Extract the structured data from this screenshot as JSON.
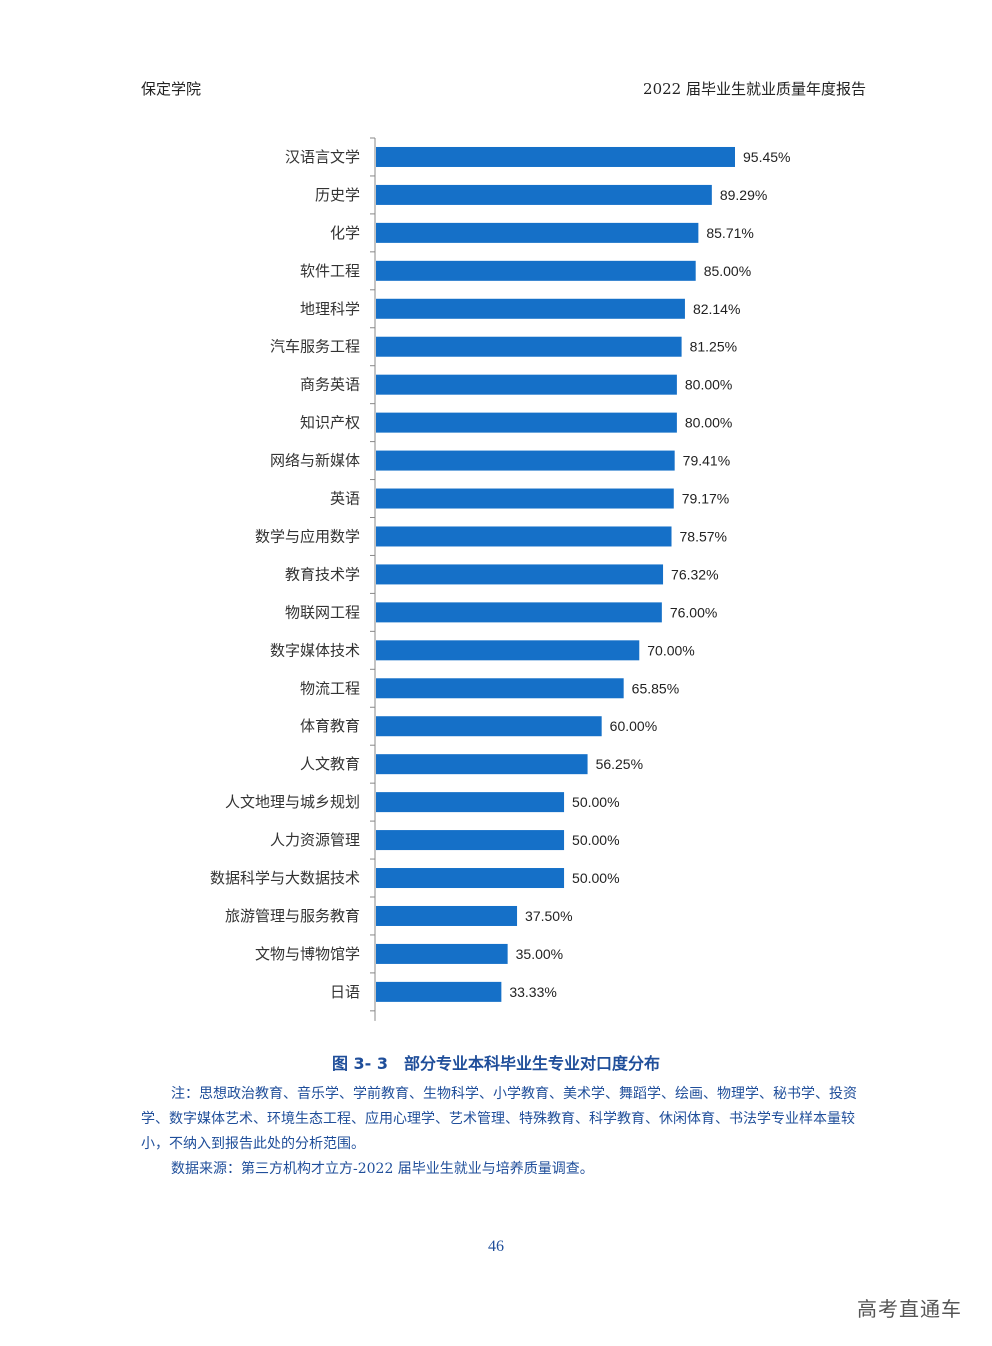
{
  "header": {
    "left": "保定学院",
    "right": "2022 届毕业生就业质量年度报告"
  },
  "caption": "图 3- 3　部分专业本科毕业生专业对口度分布",
  "note": {
    "line1": "注：思想政治教育、音乐学、学前教育、生物科学、小学教育、美术学、舞蹈学、绘画、物理学、秘书学、投资学、数字媒体艺术、环境生态工程、应用心理学、艺术管理、特殊教育、科学教育、休闲体育、书法学专业样本量较小，不纳入到报告此处的分析范围。",
    "line2": "数据来源：第三方机构才立方-2022 届毕业生就业与培养质量调查。"
  },
  "page_number": "46",
  "watermark": "高考直通车",
  "colors": {
    "bar": "#1570c8",
    "caption": "#1f4e9a",
    "axis": "#888888"
  },
  "chart_data": {
    "type": "bar",
    "orientation": "horizontal",
    "title": "部分专业本科毕业生专业对口度分布",
    "xlabel": "",
    "ylabel": "",
    "xlim": [
      0,
      100
    ],
    "value_suffix": "%",
    "categories": [
      "汉语言文学",
      "历史学",
      "化学",
      "软件工程",
      "地理科学",
      "汽车服务工程",
      "商务英语",
      "知识产权",
      "网络与新媒体",
      "英语",
      "数学与应用数学",
      "教育技术学",
      "物联网工程",
      "数字媒体技术",
      "物流工程",
      "体育教育",
      "人文教育",
      "人文地理与城乡规划",
      "人力资源管理",
      "数据科学与大数据技术",
      "旅游管理与服务教育",
      "文物与博物馆学",
      "日语"
    ],
    "values": [
      95.45,
      89.29,
      85.71,
      85.0,
      82.14,
      81.25,
      80.0,
      80.0,
      79.41,
      79.17,
      78.57,
      76.32,
      76.0,
      70.0,
      65.85,
      60.0,
      56.25,
      50.0,
      50.0,
      50.0,
      37.5,
      35.0,
      33.33
    ],
    "value_labels": [
      "95.45%",
      "89.29%",
      "85.71%",
      "85.00%",
      "82.14%",
      "81.25%",
      "80.00%",
      "80.00%",
      "79.41%",
      "79.17%",
      "78.57%",
      "76.32%",
      "76.00%",
      "70.00%",
      "65.85%",
      "60.00%",
      "56.25%",
      "50.00%",
      "50.00%",
      "50.00%",
      "37.50%",
      "35.00%",
      "33.33%"
    ]
  }
}
